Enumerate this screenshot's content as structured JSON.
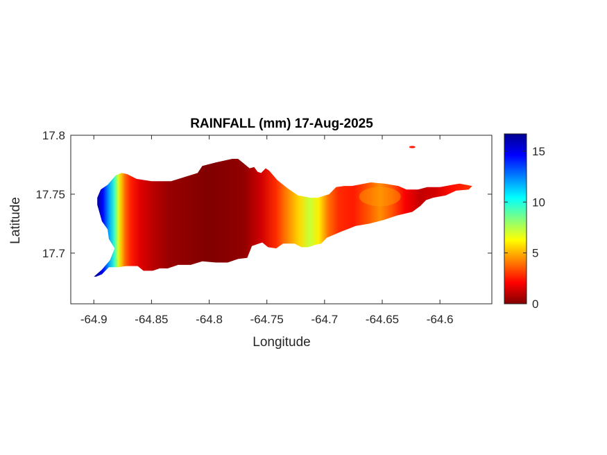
{
  "chart_data": {
    "type": "heatmap",
    "title": "RAINFALL (mm) 17-Aug-2025",
    "xlabel": "Longitude",
    "ylabel": "Latitude",
    "xlim": [
      -64.92,
      -64.555
    ],
    "ylim": [
      17.657,
      17.8
    ],
    "xticks": [
      -64.9,
      -64.85,
      -64.8,
      -64.75,
      -64.7,
      -64.65,
      -64.6
    ],
    "xtick_labels": [
      "-64.9",
      "-64.85",
      "-64.8",
      "-64.75",
      "-64.7",
      "-64.65",
      "-64.6"
    ],
    "yticks": [
      17.7,
      17.75,
      17.8
    ],
    "ytick_labels": [
      "17.7",
      "17.75",
      "17.8"
    ],
    "colorbar": {
      "range": [
        0,
        16.7
      ],
      "ticks": [
        0,
        5,
        10,
        15
      ],
      "tick_labels": [
        "0",
        "5",
        "10",
        "15"
      ],
      "colormap": "jet",
      "stops": [
        "#800000",
        "#ff0000",
        "#ff8000",
        "#ffff00",
        "#80ff80",
        "#00ffff",
        "#0080ff",
        "#0000ff",
        "#00008f"
      ]
    },
    "grid": false,
    "land_outline_lonlat": [
      [
        -64.9,
        17.68
      ],
      [
        -64.893,
        17.686
      ],
      [
        -64.886,
        17.694
      ],
      [
        -64.882,
        17.704
      ],
      [
        -64.887,
        17.712
      ],
      [
        -64.888,
        17.72
      ],
      [
        -64.893,
        17.727
      ],
      [
        -64.895,
        17.734
      ],
      [
        -64.897,
        17.741
      ],
      [
        -64.897,
        17.747
      ],
      [
        -64.894,
        17.754
      ],
      [
        -64.888,
        17.758
      ],
      [
        -64.881,
        17.766
      ],
      [
        -64.876,
        17.768
      ],
      [
        -64.871,
        17.767
      ],
      [
        -64.863,
        17.763
      ],
      [
        -64.85,
        17.761
      ],
      [
        -64.833,
        17.761
      ],
      [
        -64.82,
        17.765
      ],
      [
        -64.81,
        17.768
      ],
      [
        -64.806,
        17.774
      ],
      [
        -64.794,
        17.777
      ],
      [
        -64.78,
        17.78
      ],
      [
        -64.775,
        17.78
      ],
      [
        -64.77,
        17.776
      ],
      [
        -64.765,
        17.772
      ],
      [
        -64.761,
        17.773
      ],
      [
        -64.758,
        17.769
      ],
      [
        -64.755,
        17.768
      ],
      [
        -64.751,
        17.772
      ],
      [
        -64.748,
        17.77
      ],
      [
        -64.741,
        17.762
      ],
      [
        -64.732,
        17.755
      ],
      [
        -64.723,
        17.749
      ],
      [
        -64.712,
        17.747
      ],
      [
        -64.706,
        17.747
      ],
      [
        -64.696,
        17.75
      ],
      [
        -64.69,
        17.756
      ],
      [
        -64.683,
        17.757
      ],
      [
        -64.676,
        17.757
      ],
      [
        -64.66,
        17.76
      ],
      [
        -64.648,
        17.759
      ],
      [
        -64.636,
        17.757
      ],
      [
        -64.629,
        17.754
      ],
      [
        -64.619,
        17.754
      ],
      [
        -64.611,
        17.756
      ],
      [
        -64.6,
        17.756
      ],
      [
        -64.589,
        17.758
      ],
      [
        -64.583,
        17.759
      ],
      [
        -64.572,
        17.757
      ],
      [
        -64.575,
        17.754
      ],
      [
        -64.586,
        17.753
      ],
      [
        -64.595,
        17.749
      ],
      [
        -64.606,
        17.747
      ],
      [
        -64.612,
        17.745
      ],
      [
        -64.617,
        17.74
      ],
      [
        -64.624,
        17.735
      ],
      [
        -64.637,
        17.732
      ],
      [
        -64.649,
        17.728
      ],
      [
        -64.661,
        17.725
      ],
      [
        -64.673,
        17.723
      ],
      [
        -64.686,
        17.718
      ],
      [
        -64.698,
        17.713
      ],
      [
        -64.703,
        17.708
      ],
      [
        -64.708,
        17.707
      ],
      [
        -64.714,
        17.705
      ],
      [
        -64.72,
        17.705
      ],
      [
        -64.726,
        17.708
      ],
      [
        -64.736,
        17.708
      ],
      [
        -64.742,
        17.704
      ],
      [
        -64.749,
        17.705
      ],
      [
        -64.754,
        17.709
      ],
      [
        -64.757,
        17.708
      ],
      [
        -64.763,
        17.706
      ],
      [
        -64.767,
        17.696
      ],
      [
        -64.775,
        17.695
      ],
      [
        -64.784,
        17.692
      ],
      [
        -64.794,
        17.692
      ],
      [
        -64.806,
        17.693
      ],
      [
        -64.816,
        17.69
      ],
      [
        -64.827,
        17.69
      ],
      [
        -64.836,
        17.687
      ],
      [
        -64.843,
        17.687
      ],
      [
        -64.849,
        17.685
      ],
      [
        -64.857,
        17.685
      ],
      [
        -64.862,
        17.689
      ],
      [
        -64.872,
        17.689
      ],
      [
        -64.879,
        17.688
      ],
      [
        -64.887,
        17.688
      ],
      [
        -64.893,
        17.682
      ],
      [
        -64.898,
        17.68
      ]
    ],
    "rainfall_field": [
      {
        "lon": -64.897,
        "value": 16.5
      },
      {
        "lon": -64.892,
        "value": 14.5
      },
      {
        "lon": -64.887,
        "value": 12.0
      },
      {
        "lon": -64.882,
        "value": 9.5
      },
      {
        "lon": -64.879,
        "value": 7.0
      },
      {
        "lon": -64.876,
        "value": 5.2
      },
      {
        "lon": -64.873,
        "value": 3.8
      },
      {
        "lon": -64.868,
        "value": 2.6
      },
      {
        "lon": -64.86,
        "value": 1.6
      },
      {
        "lon": -64.85,
        "value": 1.0
      },
      {
        "lon": -64.835,
        "value": 0.4
      },
      {
        "lon": -64.8,
        "value": 0.0
      },
      {
        "lon": -64.77,
        "value": 0.3
      },
      {
        "lon": -64.755,
        "value": 1.3
      },
      {
        "lon": -64.742,
        "value": 2.8
      },
      {
        "lon": -64.732,
        "value": 4.3
      },
      {
        "lon": -64.722,
        "value": 5.6
      },
      {
        "lon": -64.713,
        "value": 7.2
      },
      {
        "lon": -64.705,
        "value": 6.0
      },
      {
        "lon": -64.697,
        "value": 4.0
      },
      {
        "lon": -64.688,
        "value": 2.8
      },
      {
        "lon": -64.675,
        "value": 2.5
      },
      {
        "lon": -64.662,
        "value": 3.5
      },
      {
        "lon": -64.652,
        "value": 4.4
      },
      {
        "lon": -64.642,
        "value": 3.5
      },
      {
        "lon": -64.63,
        "value": 2.0
      },
      {
        "lon": -64.617,
        "value": 1.1
      },
      {
        "lon": -64.603,
        "value": 1.4
      },
      {
        "lon": -64.59,
        "value": 2.3
      },
      {
        "lon": -64.575,
        "value": 2.8
      }
    ],
    "islet_lonlat": [
      -64.624,
      17.79
    ]
  }
}
